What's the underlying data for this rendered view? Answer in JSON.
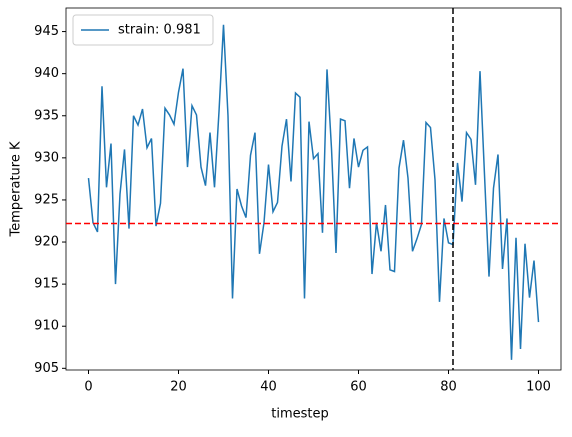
{
  "chart_data": {
    "type": "line",
    "xlabel": "timestep",
    "ylabel": "Temperature K",
    "x": [
      0,
      1,
      2,
      3,
      4,
      5,
      6,
      7,
      8,
      9,
      10,
      11,
      12,
      13,
      14,
      15,
      16,
      17,
      18,
      19,
      20,
      21,
      22,
      23,
      24,
      25,
      26,
      27,
      28,
      29,
      30,
      31,
      32,
      33,
      34,
      35,
      36,
      37,
      38,
      39,
      40,
      41,
      42,
      43,
      44,
      45,
      46,
      47,
      48,
      49,
      50,
      51,
      52,
      53,
      54,
      55,
      56,
      57,
      58,
      59,
      60,
      61,
      62,
      63,
      64,
      65,
      66,
      67,
      68,
      69,
      70,
      71,
      72,
      73,
      74,
      75,
      76,
      77,
      78,
      79,
      80,
      81,
      82,
      83,
      84,
      85,
      86,
      87,
      88,
      89,
      90,
      91,
      92,
      93,
      94,
      95,
      96,
      97,
      98,
      99,
      100
    ],
    "series": [
      {
        "name": "strain: 0.981",
        "color": "#1f77b4",
        "values": [
          927.6,
          922.3,
          921.2,
          938.5,
          926.5,
          931.7,
          915.0,
          925.7,
          931.0,
          921.6,
          935.0,
          933.9,
          935.8,
          931.2,
          932.3,
          921.9,
          924.6,
          935.9,
          935.1,
          934.0,
          937.8,
          940.6,
          928.9,
          936.2,
          935.1,
          928.9,
          926.7,
          933.0,
          926.5,
          935.5,
          945.8,
          935.0,
          913.3,
          926.3,
          924.3,
          922.9,
          930.3,
          933.0,
          918.6,
          922.3,
          929.2,
          923.6,
          924.7,
          931.4,
          934.6,
          927.2,
          937.7,
          937.2,
          913.3,
          934.3,
          929.9,
          930.5,
          921.1,
          940.5,
          931.1,
          918.7,
          934.6,
          934.4,
          926.4,
          932.3,
          928.9,
          930.9,
          931.3,
          916.2,
          922.3,
          918.9,
          924.4,
          916.7,
          916.5,
          928.8,
          932.1,
          927.6,
          918.9,
          920.4,
          922.1,
          934.2,
          933.6,
          927.4,
          912.9,
          922.8,
          919.9,
          919.7,
          929.4,
          924.8,
          933.0,
          932.2,
          926.8,
          940.3,
          928.0,
          915.9,
          926.4,
          930.4,
          916.8,
          922.8,
          906.0,
          920.5,
          907.3,
          919.8,
          913.4,
          917.8,
          910.5
        ]
      }
    ],
    "hline": {
      "value": 922.2,
      "color": "#ff0000"
    },
    "vline": {
      "value": 81,
      "color": "#000000"
    },
    "xlim": [
      -5,
      105
    ],
    "xticks": [
      0,
      20,
      40,
      60,
      80,
      100
    ],
    "ylim": [
      904.8,
      947.8
    ],
    "yticks": [
      905,
      910,
      915,
      920,
      925,
      930,
      935,
      940,
      945
    ],
    "grid": false,
    "legend": "upper-left"
  }
}
